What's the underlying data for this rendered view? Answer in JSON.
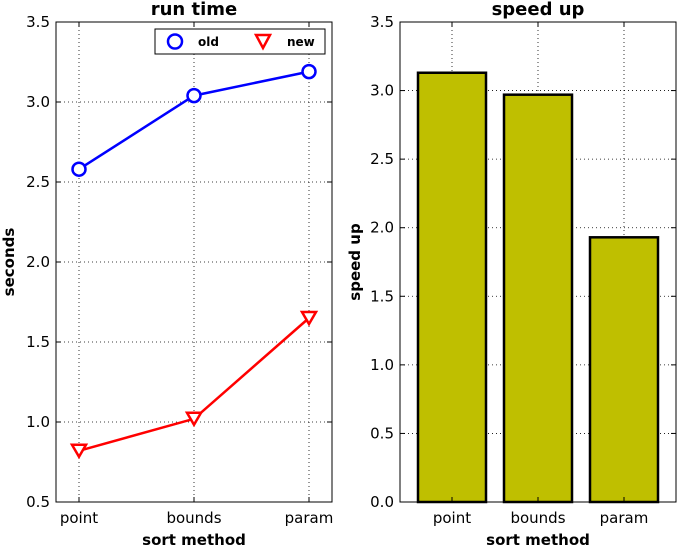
{
  "chart_data": [
    {
      "type": "line",
      "title": "run time",
      "xlabel": "sort method",
      "ylabel": "seconds",
      "categories": [
        "point",
        "bounds",
        "param"
      ],
      "ylim": [
        0.5,
        3.5
      ],
      "yticks": [
        "0.5",
        "1.0",
        "1.5",
        "2.0",
        "2.5",
        "3.0",
        "3.5"
      ],
      "grid": true,
      "legend_position": "top-right",
      "series": [
        {
          "name": "old",
          "values": [
            2.58,
            3.04,
            3.19
          ],
          "color": "#0000ff",
          "marker": "circle"
        },
        {
          "name": "new",
          "values": [
            0.82,
            1.02,
            1.65
          ],
          "color": "#ff0000",
          "marker": "triangle-down"
        }
      ]
    },
    {
      "type": "bar",
      "title": "speed up",
      "xlabel": "sort method",
      "ylabel": "speed up",
      "categories": [
        "point",
        "bounds",
        "param"
      ],
      "values": [
        3.13,
        2.97,
        1.93
      ],
      "ylim": [
        0.0,
        3.5
      ],
      "yticks": [
        "0.0",
        "0.5",
        "1.0",
        "1.5",
        "2.0",
        "2.5",
        "3.0",
        "3.5"
      ],
      "grid": true,
      "bar_color": "#bfbf00"
    }
  ]
}
